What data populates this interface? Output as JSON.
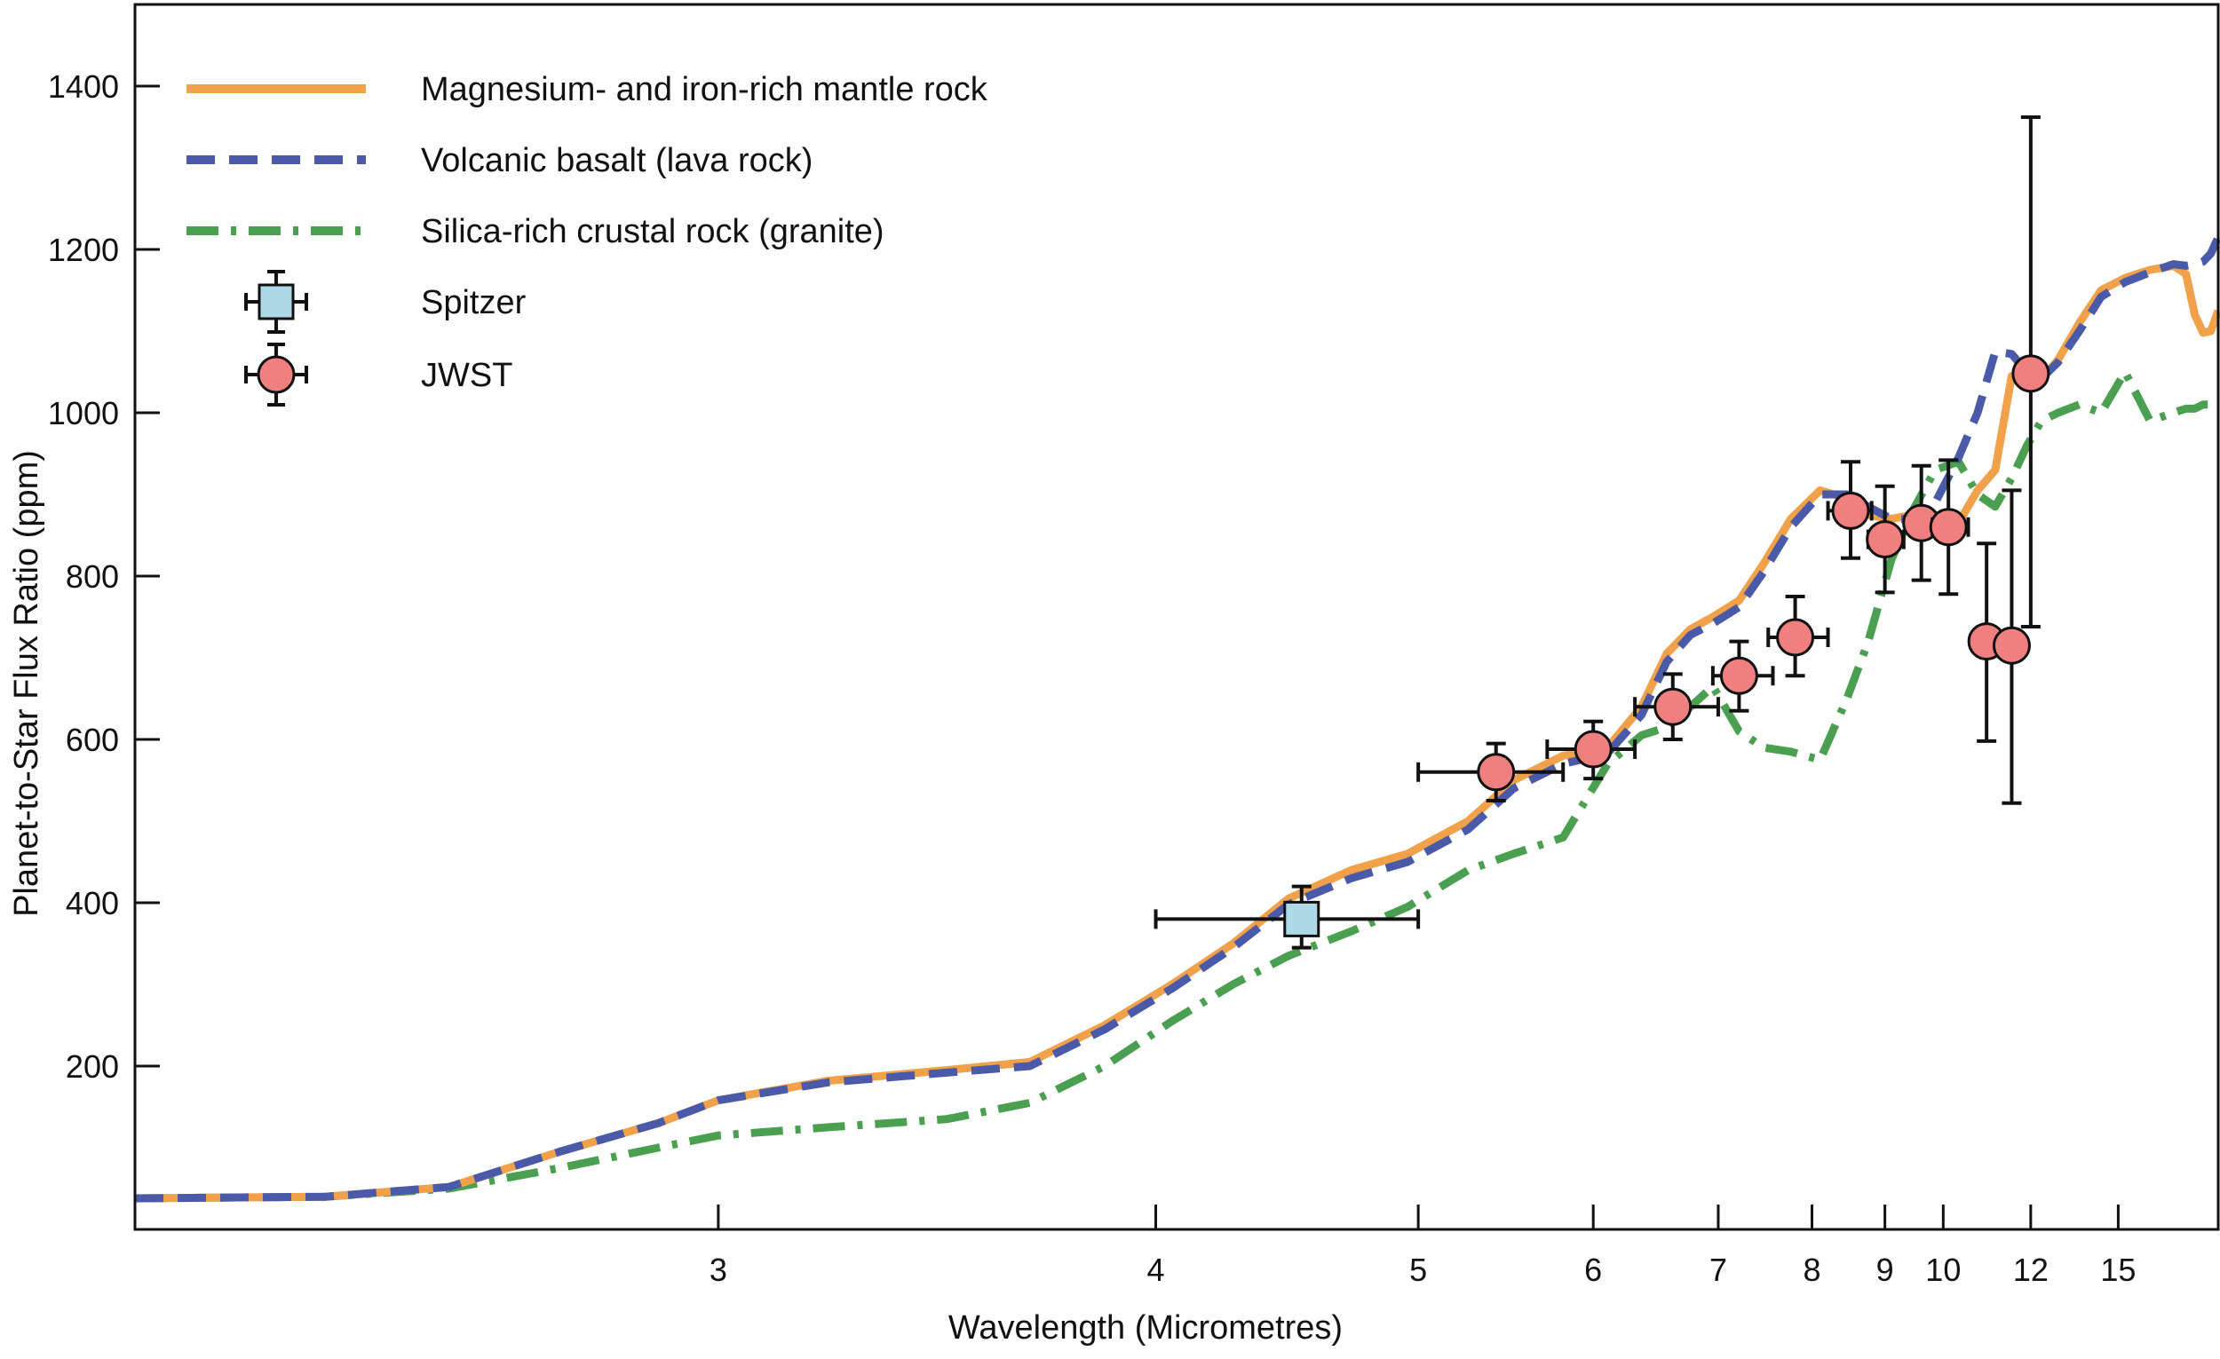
{
  "chart_data": {
    "type": "line",
    "x_scale": "reciprocal",
    "xlabel": "Wavelength (Micrometres)",
    "ylabel": "Planet-to-Star Flux Ratio (ppm)",
    "xlim": [
      2.25,
      21.0
    ],
    "ylim": [
      0,
      1500
    ],
    "x_ticks": [
      3,
      4,
      5,
      6,
      7,
      8,
      9,
      10,
      12,
      15
    ],
    "y_ticks": [
      200,
      400,
      600,
      800,
      1000,
      1200,
      1400
    ],
    "grid": false,
    "legend_position": "top-left",
    "series": [
      {
        "name": "Magnesium- and iron-rich mantle rock",
        "kind": "model",
        "color": "#f0a14a",
        "style": "solid",
        "x": [
          2.25,
          2.45,
          2.6,
          2.75,
          2.9,
          3.0,
          3.2,
          3.45,
          3.65,
          3.85,
          4.05,
          4.25,
          4.45,
          4.7,
          4.95,
          5.25,
          5.5,
          5.8,
          6.1,
          6.35,
          6.55,
          6.75,
          6.95,
          7.2,
          7.45,
          7.75,
          8.1,
          8.45,
          8.75,
          9.1,
          9.45,
          9.85,
          10.3,
          10.7,
          11.1,
          11.5,
          11.9,
          12.3,
          12.8,
          13.5,
          14.3,
          15.3,
          16.5,
          17.8,
          18.6,
          19.2,
          19.8,
          20.4,
          21.0
        ],
        "y": [
          38,
          40,
          52,
          95,
          130,
          158,
          182,
          195,
          205,
          250,
          300,
          350,
          405,
          440,
          460,
          500,
          550,
          580,
          590,
          640,
          705,
          735,
          750,
          770,
          815,
          870,
          905,
          895,
          875,
          870,
          875,
          875,
          865,
          905,
          930,
          1045,
          1040,
          1040,
          1065,
          1110,
          1150,
          1165,
          1175,
          1180,
          1170,
          1120,
          1098,
          1100,
          1125
        ]
      },
      {
        "name": "Volcanic basalt (lava rock)",
        "kind": "model",
        "color": "#4a5aa8",
        "style": "dashed",
        "x": [
          2.25,
          2.45,
          2.6,
          2.75,
          2.9,
          3.0,
          3.2,
          3.45,
          3.65,
          3.85,
          4.05,
          4.25,
          4.45,
          4.7,
          4.95,
          5.25,
          5.5,
          5.8,
          6.1,
          6.35,
          6.55,
          6.75,
          6.95,
          7.2,
          7.45,
          7.75,
          8.1,
          8.45,
          8.75,
          9.1,
          9.45,
          9.85,
          10.3,
          10.7,
          11.1,
          11.5,
          11.9,
          12.3,
          12.8,
          13.5,
          14.3,
          15.3,
          16.5,
          17.8,
          18.6,
          19.2,
          19.8,
          20.4,
          21.0
        ],
        "y": [
          38,
          40,
          52,
          95,
          130,
          158,
          180,
          192,
          200,
          245,
          295,
          345,
          398,
          430,
          450,
          490,
          540,
          570,
          583,
          630,
          695,
          728,
          742,
          762,
          805,
          860,
          900,
          900,
          885,
          870,
          870,
          890,
          945,
          1000,
          1075,
          1072,
          1050,
          1042,
          1062,
          1100,
          1142,
          1160,
          1172,
          1182,
          1180,
          1182,
          1185,
          1195,
          1215
        ]
      },
      {
        "name": "Silica-rich crustal rock (granite)",
        "kind": "model",
        "color": "#4aa050",
        "style": "dash-dot",
        "x": [
          2.25,
          2.45,
          2.6,
          2.75,
          2.9,
          3.0,
          3.2,
          3.45,
          3.65,
          3.85,
          4.05,
          4.25,
          4.45,
          4.7,
          4.95,
          5.25,
          5.5,
          5.8,
          6.1,
          6.35,
          6.55,
          6.75,
          6.95,
          7.2,
          7.45,
          7.75,
          8.1,
          8.45,
          8.75,
          9.1,
          9.45,
          9.85,
          10.3,
          10.7,
          11.1,
          11.5,
          11.9,
          12.3,
          12.8,
          13.5,
          14.3,
          15.3,
          16.5,
          17.8,
          18.6,
          19.2,
          19.8,
          20.4,
          21.0
        ],
        "y": [
          38,
          40,
          50,
          75,
          100,
          115,
          125,
          135,
          155,
          200,
          255,
          300,
          335,
          365,
          395,
          440,
          460,
          480,
          570,
          605,
          615,
          640,
          665,
          610,
          590,
          585,
          575,
          650,
          720,
          820,
          880,
          930,
          940,
          900,
          885,
          920,
          960,
          990,
          1000,
          1010,
          1000,
          1050,
          990,
          1000,
          1005,
          1005,
          1010,
          1010,
          1010
        ]
      },
      {
        "name": "Spitzer",
        "kind": "observation",
        "marker": "square",
        "color": "#add8e6",
        "points": [
          {
            "x": 4.5,
            "y": 380,
            "xerr": [
              4.0,
              5.0
            ],
            "yerr": [
              345,
              420
            ]
          }
        ]
      },
      {
        "name": "JWST",
        "kind": "observation",
        "marker": "circle",
        "color": "#f08080",
        "points": [
          {
            "x": 5.4,
            "y": 560,
            "xerr": [
              5.0,
              5.8
            ],
            "yerr": [
              525,
              595
            ]
          },
          {
            "x": 6.0,
            "y": 588,
            "xerr": [
              5.7,
              6.3
            ],
            "yerr": [
              552,
              622
            ]
          },
          {
            "x": 6.6,
            "y": 640,
            "xerr": [
              6.3,
              7.0
            ],
            "yerr": [
              600,
              680
            ]
          },
          {
            "x": 7.2,
            "y": 678,
            "xerr": [
              6.95,
              7.55
            ],
            "yerr": [
              635,
              720
            ]
          },
          {
            "x": 7.8,
            "y": 725,
            "xerr": [
              7.5,
              8.2
            ],
            "yerr": [
              678,
              775
            ]
          },
          {
            "x": 8.5,
            "y": 880,
            "xerr": [
              8.2,
              8.8
            ],
            "yerr": [
              822,
              940
            ]
          },
          {
            "x": 9.0,
            "y": 845,
            "xerr": [
              8.75,
              9.3
            ],
            "yerr": [
              780,
              910
            ]
          },
          {
            "x": 9.6,
            "y": 865,
            "xerr": [
              9.4,
              9.85
            ],
            "yerr": [
              795,
              935
            ]
          },
          {
            "x": 10.1,
            "y": 860,
            "xerr": [
              9.8,
              10.5
            ],
            "yerr": [
              778,
              942
            ]
          },
          {
            "x": 10.9,
            "y": 720,
            "xerr": [
              10.9,
              10.9
            ],
            "yerr": [
              598,
              840
            ]
          },
          {
            "x": 11.5,
            "y": 715,
            "xerr": [
              11.2,
              11.8
            ],
            "yerr": [
              522,
              905
            ]
          },
          {
            "x": 12.0,
            "y": 1048,
            "xerr": [
              11.8,
              12.2
            ],
            "yerr": [
              738,
              1362
            ]
          }
        ]
      }
    ]
  }
}
